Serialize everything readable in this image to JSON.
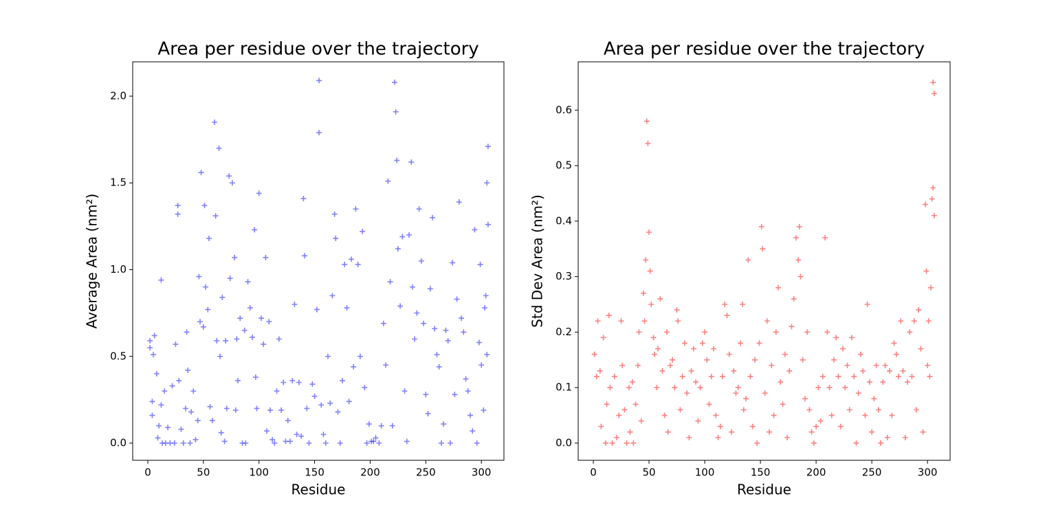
{
  "chart_data": [
    {
      "type": "scatter",
      "title": "Area per residue over the trajectory",
      "xlabel": "Residue",
      "ylabel": "Average Area (nm²)",
      "color": "#0000ff",
      "alpha": 0.5,
      "xlim": [
        -13.6,
        320.3
      ],
      "ylim": [
        -0.099,
        2.198
      ],
      "xticks": [
        0,
        50,
        100,
        150,
        200,
        250,
        300
      ],
      "yticks": [
        {
          "value": 0,
          "label": "0.0"
        },
        0.5,
        {
          "value": 1,
          "label": "1.0"
        },
        1.5,
        {
          "value": 2,
          "label": "2.0"
        }
      ],
      "x": [
        2,
        2,
        4,
        4,
        5,
        6,
        8,
        9,
        10,
        12,
        12,
        13,
        15,
        16,
        18,
        20,
        22,
        24,
        25,
        27,
        27,
        28,
        30,
        32,
        34,
        35,
        36,
        38,
        39,
        41,
        43,
        45,
        46,
        47,
        48,
        50,
        51,
        52,
        54,
        55,
        56,
        58,
        60,
        61,
        62,
        64,
        65,
        66,
        67,
        69,
        70,
        71,
        73,
        74,
        76,
        78,
        79,
        80,
        81,
        83,
        85,
        87,
        88,
        90,
        92,
        94,
        96,
        97,
        98,
        100,
        102,
        104,
        106,
        107,
        109,
        110,
        112,
        114,
        116,
        118,
        120,
        122,
        124,
        126,
        128,
        130,
        132,
        134,
        136,
        138,
        140,
        141,
        143,
        145,
        148,
        150,
        152,
        154,
        154,
        156,
        158,
        160,
        162,
        164,
        166,
        168,
        169,
        171,
        173,
        175,
        177,
        179,
        181,
        183,
        185,
        187,
        189,
        191,
        193,
        195,
        197,
        199,
        201,
        203,
        205,
        208,
        210,
        212,
        214,
        216,
        218,
        220,
        222,
        223,
        224,
        225,
        227,
        229,
        231,
        233,
        235,
        237,
        238,
        240,
        242,
        244,
        246,
        248,
        250,
        252,
        254,
        256,
        258,
        260,
        262,
        264,
        266,
        268,
        270,
        272,
        274,
        276,
        278,
        280,
        282,
        284,
        286,
        288,
        290,
        292,
        294,
        296,
        298,
        299,
        300,
        302,
        303,
        304,
        305,
        306,
        306,
        305
      ],
      "values": [
        0.59,
        0.55,
        0.24,
        0.16,
        0.51,
        0.62,
        0.4,
        0.03,
        0.1,
        0.94,
        0.22,
        0,
        0.3,
        0,
        0.09,
        0,
        0.33,
        0,
        0.57,
        1.37,
        1.32,
        0.36,
        0.08,
        0,
        0.2,
        0.64,
        0.42,
        0,
        0.18,
        0.3,
        0.02,
        0.13,
        0.96,
        0.7,
        1.56,
        0.67,
        1.37,
        0.9,
        0.77,
        1.18,
        0.21,
        0.13,
        1.85,
        1.31,
        0.59,
        1.7,
        0.5,
        0.06,
        0.84,
        0.01,
        0.59,
        0.2,
        1.54,
        0.95,
        1.5,
        1.07,
        0.19,
        0.6,
        0.36,
        0.72,
        0,
        0.65,
        0,
        0.93,
        0.78,
        0.61,
        1.23,
        0.38,
        0.2,
        1.44,
        0.72,
        0.57,
        1.07,
        0.07,
        0.7,
        0.19,
        0.02,
        0,
        0.3,
        0.6,
        0.19,
        0.35,
        0.01,
        0.13,
        0.01,
        0.36,
        0.8,
        0.05,
        0.35,
        0.04,
        1.41,
        1.08,
        0.2,
        0,
        0.34,
        0.27,
        0.77,
        2.09,
        1.79,
        0.22,
        0.05,
        0,
        0.5,
        0.23,
        0.85,
        1.32,
        1.18,
        0.18,
        0,
        0.36,
        1.03,
        0.78,
        0.24,
        1.06,
        0.44,
        1.35,
        1.03,
        0.5,
        1.22,
        0.32,
        0,
        0.11,
        0.01,
        0.01,
        0.03,
        0,
        0.1,
        0.69,
        0.45,
        1.51,
        0.93,
        0.1,
        2.08,
        1.91,
        1.63,
        1.12,
        0.79,
        1.19,
        0.3,
        0.01,
        1.2,
        1.62,
        0.9,
        0.6,
        0.75,
        1.35,
        1.05,
        0.69,
        0.28,
        0.17,
        0.89,
        1.3,
        0.66,
        0.51,
        0.44,
        0,
        0.11,
        0.65,
        0.59,
        0,
        1.04,
        0.28,
        0.83,
        1.39,
        0.72,
        0.64,
        0.37,
        0.3,
        0.16,
        0.07,
        1.23,
        0,
        0.58,
        1.03,
        0.45,
        0.19,
        0.78,
        0.85,
        1.5,
        1.71,
        1.26,
        0.51
      ]
    },
    {
      "type": "scatter",
      "title": "Area per residue over the trajectory",
      "xlabel": "Residue",
      "ylabel": "Std Dev Area (nm²)",
      "color": "#ff0000",
      "alpha": 0.5,
      "xlim": [
        -13.6,
        320.3
      ],
      "ylim": [
        -0.031,
        0.687
      ],
      "xticks": [
        0,
        50,
        100,
        150,
        200,
        250,
        300
      ],
      "yticks": [
        {
          "value": 0,
          "label": "0.0"
        },
        0.1,
        0.2,
        0.3,
        0.4,
        0.5,
        0.6
      ],
      "x": [
        1,
        3,
        4,
        6,
        7,
        9,
        11,
        12,
        14,
        15,
        17,
        19,
        21,
        23,
        25,
        26,
        28,
        30,
        32,
        33,
        35,
        36,
        38,
        40,
        41,
        43,
        45,
        46,
        47,
        48,
        49,
        50,
        51,
        52,
        54,
        55,
        57,
        58,
        60,
        62,
        64,
        66,
        67,
        69,
        71,
        73,
        75,
        76,
        78,
        80,
        82,
        84,
        86,
        88,
        90,
        92,
        94,
        96,
        98,
        100,
        102,
        104,
        106,
        108,
        110,
        112,
        114,
        116,
        118,
        120,
        122,
        124,
        126,
        128,
        130,
        132,
        134,
        135,
        137,
        139,
        141,
        143,
        145,
        147,
        149,
        151,
        152,
        154,
        156,
        158,
        160,
        162,
        164,
        166,
        168,
        170,
        172,
        174,
        176,
        178,
        180,
        182,
        184,
        185,
        186,
        188,
        190,
        192,
        194,
        196,
        198,
        200,
        202,
        204,
        206,
        208,
        210,
        212,
        214,
        216,
        218,
        220,
        222,
        224,
        226,
        228,
        230,
        232,
        234,
        236,
        238,
        240,
        242,
        244,
        246,
        248,
        250,
        252,
        254,
        256,
        258,
        260,
        262,
        264,
        266,
        268,
        270,
        272,
        274,
        276,
        278,
        280,
        282,
        284,
        286,
        288,
        290,
        292,
        294,
        296,
        298,
        299,
        300,
        301,
        302,
        303,
        304,
        305,
        306,
        305,
        306
      ],
      "values": [
        0.16,
        0.12,
        0.22,
        0.13,
        0.03,
        0.19,
        0,
        0.07,
        0.23,
        0.1,
        0,
        0.12,
        0.01,
        0.05,
        0.22,
        0.14,
        0.06,
        0,
        0.1,
        0.02,
        0.11,
        0,
        0.07,
        0.14,
        0.2,
        0.04,
        0.27,
        0.22,
        0.33,
        0.58,
        0.54,
        0.38,
        0.31,
        0.25,
        0.19,
        0.16,
        0.1,
        0.17,
        0.26,
        0.13,
        0.05,
        0.2,
        0.02,
        0.14,
        0.15,
        0.1,
        0.24,
        0.22,
        0.06,
        0.12,
        0.18,
        0.09,
        0.01,
        0.13,
        0.17,
        0.11,
        0.04,
        0.1,
        0.18,
        0.2,
        0.15,
        0.07,
        0.12,
        0.17,
        0.05,
        0.01,
        0.03,
        0.12,
        0.25,
        0.23,
        0.16,
        0.02,
        0.13,
        0.09,
        0.1,
        0.18,
        0.25,
        0.06,
        0.08,
        0.33,
        0.12,
        0.03,
        0.15,
        0,
        0.18,
        0.39,
        0.35,
        0.09,
        0.22,
        0.02,
        0.14,
        0.05,
        0.2,
        0.28,
        0.11,
        0.07,
        0.16,
        0.01,
        0.13,
        0.21,
        0.26,
        0.37,
        0.33,
        0.39,
        0.3,
        0.15,
        0.08,
        0.2,
        0.06,
        0.02,
        0,
        0.03,
        0.1,
        0.04,
        0.12,
        0.37,
        0.2,
        0.1,
        0.05,
        0.15,
        0.19,
        0.12,
        0.03,
        0.17,
        0.1,
        0.14,
        0.06,
        0.19,
        0.12,
        0,
        0.09,
        0.16,
        0.13,
        0.05,
        0.25,
        0.11,
        0.02,
        0.08,
        0.14,
        0.06,
        0,
        0.11,
        0.14,
        0.01,
        0.13,
        0.05,
        0.18,
        0.16,
        0.12,
        0.22,
        0.13,
        0.01,
        0.11,
        0.2,
        0.12,
        0.22,
        0.06,
        0.24,
        0.17,
        0.02,
        0.43,
        0.31,
        0.14,
        0.22,
        0.12,
        0.28,
        0.44,
        0.46,
        0.41,
        0.65,
        0.63
      ]
    }
  ]
}
